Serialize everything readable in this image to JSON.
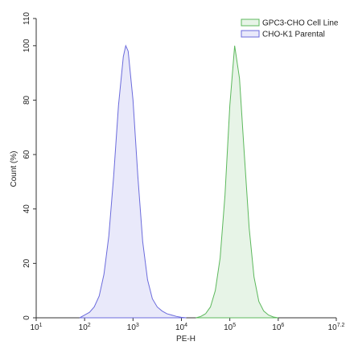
{
  "chart_data": {
    "type": "histogram-overlay",
    "xlabel": "PE-H",
    "ylabel": "Count (%)",
    "xscale": "log",
    "xlim": [
      10,
      15848932
    ],
    "ylim": [
      0,
      110
    ],
    "xticks": [
      {
        "value": 10,
        "label": "10",
        "sup": "1"
      },
      {
        "value": 100,
        "label": "10",
        "sup": "2"
      },
      {
        "value": 1000,
        "label": "10",
        "sup": "3"
      },
      {
        "value": 10000,
        "label": "10",
        "sup": "4"
      },
      {
        "value": 100000,
        "label": "10",
        "sup": "5"
      },
      {
        "value": 1000000,
        "label": "10",
        "sup": "6"
      },
      {
        "value": 15848932,
        "label": "10",
        "sup": "7.2"
      }
    ],
    "yticks": [
      0,
      20,
      40,
      60,
      80,
      100,
      110
    ],
    "legend": "upper right",
    "series": [
      {
        "name": "GPC3-CHO Cell Line",
        "color": "#5cb85c",
        "x": [
          19953,
          25119,
          31623,
          39811,
          50119,
          63096,
          79433,
          100000,
          125893,
          158489,
          199526,
          251189,
          316228,
          398107,
          501187,
          630957,
          794328,
          1000000
        ],
        "values": [
          0,
          0.5,
          1.5,
          4,
          10,
          22,
          45,
          78,
          100,
          88,
          60,
          33,
          15,
          6,
          2.5,
          1,
          0.3,
          0
        ]
      },
      {
        "name": "CHO-K1 Parental",
        "color": "#6b6bdc",
        "x": [
          79,
          100,
          126,
          158,
          200,
          251,
          316,
          398,
          501,
          631,
          708,
          794,
          1000,
          1259,
          1585,
          1995,
          2512,
          3162,
          3981,
          5012,
          6310,
          7943,
          10000,
          12589
        ],
        "values": [
          0,
          1,
          2,
          4,
          8,
          16,
          30,
          52,
          78,
          96,
          100,
          98,
          80,
          52,
          28,
          14,
          7,
          4,
          2.5,
          1.5,
          1,
          0.5,
          0.2,
          0
        ]
      }
    ]
  }
}
